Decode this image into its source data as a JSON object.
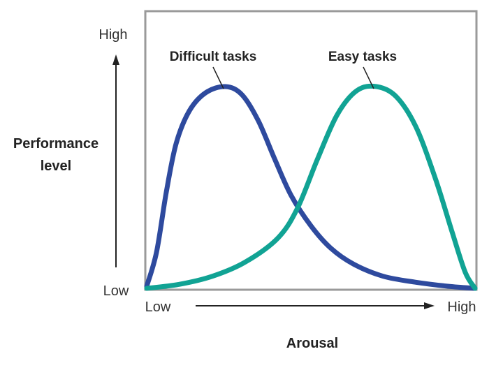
{
  "chart_data": {
    "type": "line",
    "xlabel": "Arousal",
    "ylabel_line1": "Performance",
    "ylabel_line2": "level",
    "x_low_label": "Low",
    "x_high_label": "High",
    "y_low_label": "Low",
    "y_high_label": "High",
    "xlim": [
      0,
      1
    ],
    "ylim": [
      0,
      1
    ],
    "grid": false,
    "series": [
      {
        "name": "Difficult tasks",
        "color": "#2E4A9E",
        "points": [
          [
            0.0,
            0.01
          ],
          [
            0.03,
            0.18
          ],
          [
            0.06,
            0.48
          ],
          [
            0.09,
            0.72
          ],
          [
            0.13,
            0.88
          ],
          [
            0.18,
            0.97
          ],
          [
            0.24,
            1.0
          ],
          [
            0.29,
            0.96
          ],
          [
            0.34,
            0.83
          ],
          [
            0.39,
            0.64
          ],
          [
            0.44,
            0.46
          ],
          [
            0.5,
            0.31
          ],
          [
            0.56,
            0.2
          ],
          [
            0.63,
            0.12
          ],
          [
            0.72,
            0.06
          ],
          [
            0.82,
            0.03
          ],
          [
            0.92,
            0.01
          ],
          [
            1.0,
            0.0
          ]
        ]
      },
      {
        "name": "Easy tasks",
        "color": "#11A394",
        "points": [
          [
            0.0,
            0.0
          ],
          [
            0.1,
            0.02
          ],
          [
            0.2,
            0.06
          ],
          [
            0.3,
            0.13
          ],
          [
            0.4,
            0.25
          ],
          [
            0.46,
            0.4
          ],
          [
            0.52,
            0.64
          ],
          [
            0.58,
            0.86
          ],
          [
            0.64,
            0.98
          ],
          [
            0.7,
            1.0
          ],
          [
            0.76,
            0.95
          ],
          [
            0.82,
            0.8
          ],
          [
            0.88,
            0.54
          ],
          [
            0.93,
            0.28
          ],
          [
            0.97,
            0.08
          ],
          [
            1.0,
            0.0
          ]
        ]
      }
    ]
  }
}
